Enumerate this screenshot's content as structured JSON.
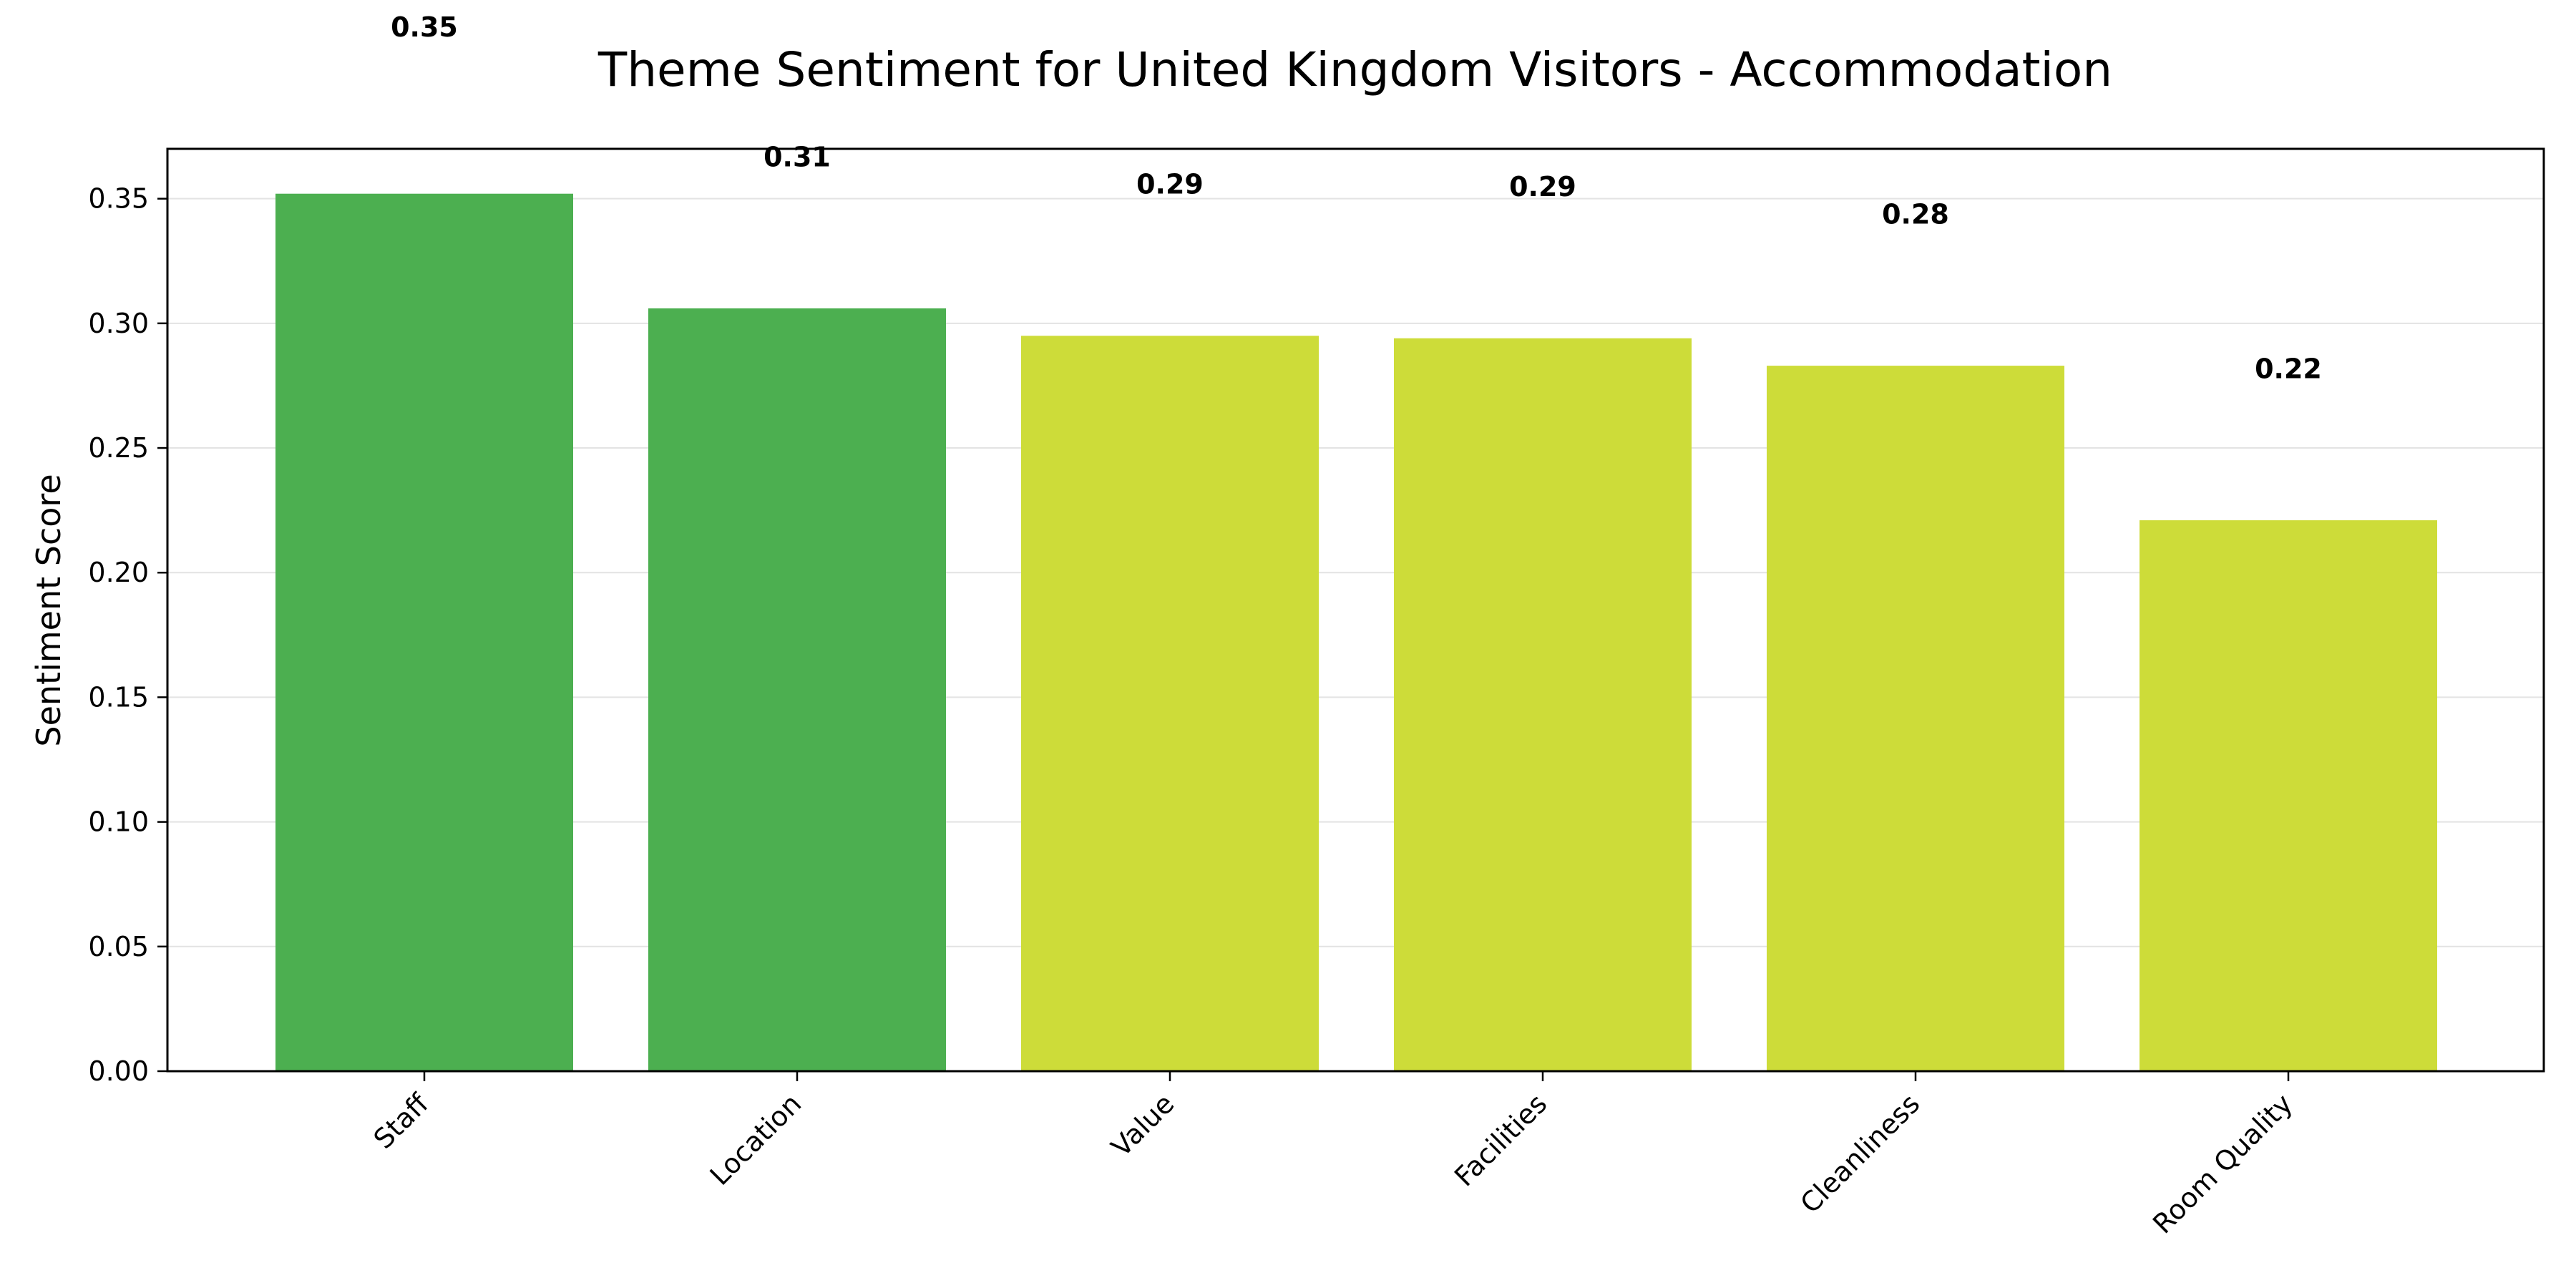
{
  "chart_data": {
    "type": "bar",
    "title": "Theme Sentiment for United Kingdom Visitors - Accommodation",
    "xlabel": "",
    "ylabel": "Sentiment Score",
    "categories": [
      "Staff",
      "Location",
      "Value",
      "Facilities",
      "Cleanliness",
      "Room Quality"
    ],
    "values": [
      0.352,
      0.306,
      0.295,
      0.294,
      0.283,
      0.221
    ],
    "data_labels": [
      "0.35",
      "0.31",
      "0.29",
      "0.29",
      "0.28",
      "0.22"
    ],
    "label_values": [
      0.415,
      0.363,
      0.352,
      0.351,
      0.34,
      0.278
    ],
    "bar_colors": [
      "#4caf50",
      "#4caf50",
      "#cddc39",
      "#cddc39",
      "#cddc39",
      "#cddc39"
    ],
    "ylim": [
      0,
      0.37
    ],
    "yticks": [
      0.0,
      0.05,
      0.1,
      0.15,
      0.2,
      0.25,
      0.3,
      0.35
    ],
    "ytick_labels": [
      "0.00",
      "0.05",
      "0.10",
      "0.15",
      "0.20",
      "0.25",
      "0.30",
      "0.35"
    ],
    "grid": "y",
    "legend": "none"
  }
}
